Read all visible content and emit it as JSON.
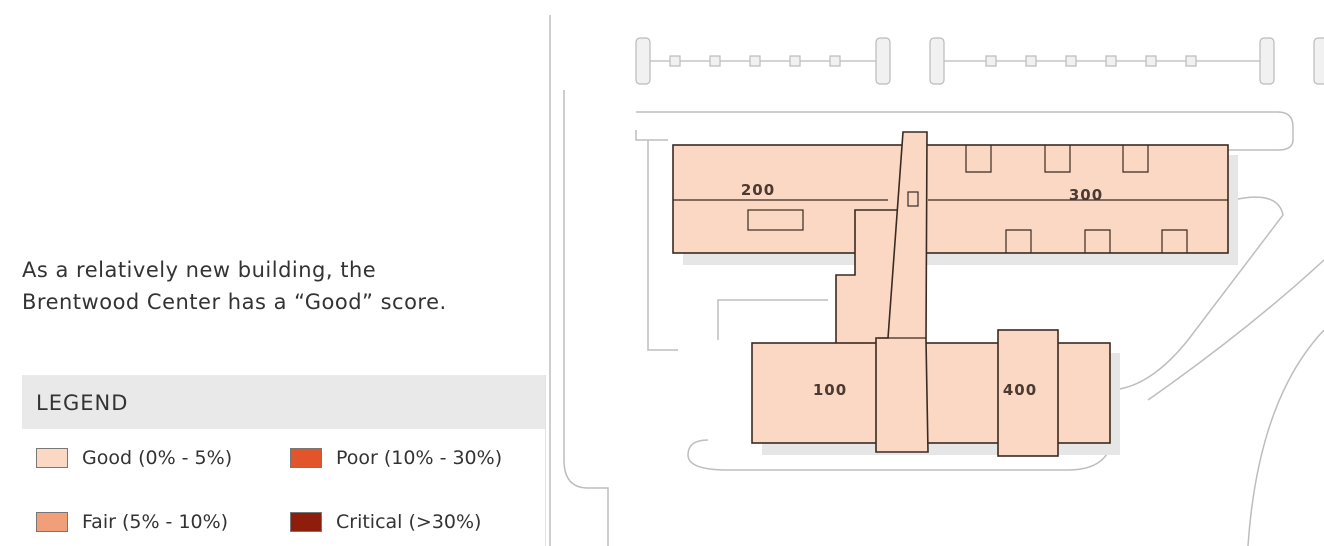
{
  "description": [
    "As a relatively new building, the",
    "Brentwood Center has a “Good” score."
  ],
  "legend": {
    "title": "LEGEND",
    "items": [
      {
        "label": "Good (0% - 5%)",
        "color": "#fbd8c4"
      },
      {
        "label": "Poor (10% - 30%)",
        "color": "#e2552a"
      },
      {
        "label": "Fair (5% - 10%)",
        "color": "#f19f78"
      },
      {
        "label": "Critical (>30%)",
        "color": "#8f1d0c"
      }
    ]
  },
  "buildings": [
    "200",
    "300",
    "100",
    "400"
  ],
  "building_color": "#fbd8c4"
}
